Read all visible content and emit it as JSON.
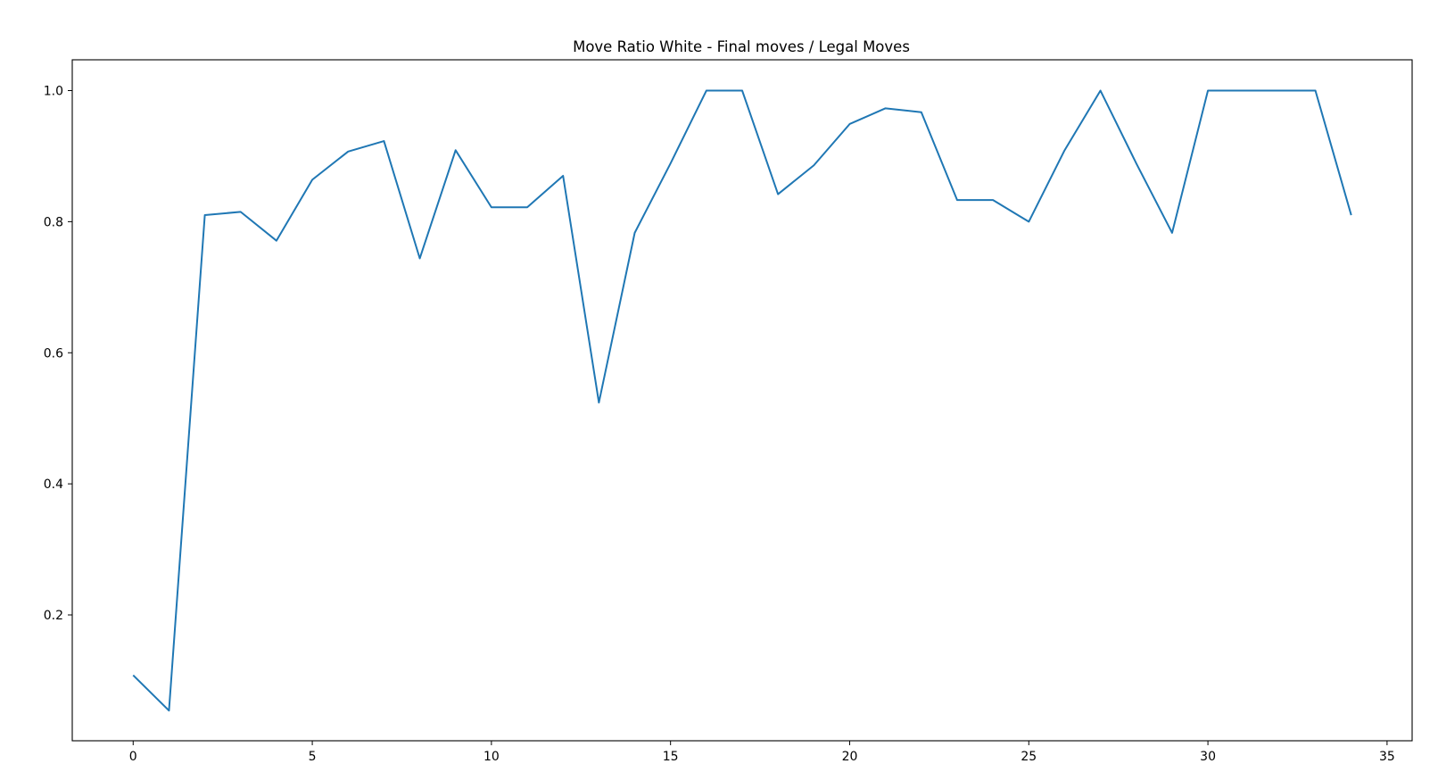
{
  "chart_data": {
    "type": "line",
    "title": "Move Ratio White - Final moves / Legal Moves",
    "xlabel": "",
    "ylabel": "",
    "xlim": [
      -1.7,
      35.7
    ],
    "ylim": [
      0.008,
      1.047
    ],
    "xticks": [
      0,
      5,
      10,
      15,
      20,
      25,
      30,
      35
    ],
    "xtick_labels": [
      "0",
      "5",
      "10",
      "15",
      "20",
      "25",
      "30",
      "35"
    ],
    "yticks": [
      0.2,
      0.4,
      0.6,
      0.8,
      1.0
    ],
    "ytick_labels": [
      "0.2",
      "0.4",
      "0.6",
      "0.8",
      "1.0"
    ],
    "grid": false,
    "legend": "none",
    "series": [
      {
        "color": "#1f77b4",
        "x": [
          0,
          1,
          2,
          3,
          4,
          5,
          6,
          7,
          8,
          9,
          10,
          11,
          12,
          13,
          14,
          15,
          16,
          17,
          18,
          19,
          20,
          21,
          22,
          23,
          24,
          25,
          26,
          27,
          28,
          29,
          30,
          31,
          32,
          33,
          34
        ],
        "values": [
          0.108,
          0.054,
          0.81,
          0.815,
          0.771,
          0.864,
          0.907,
          0.923,
          0.744,
          0.909,
          0.822,
          0.822,
          0.87,
          0.524,
          0.783,
          0.889,
          1.0,
          1.0,
          0.842,
          0.886,
          0.949,
          0.973,
          0.967,
          0.833,
          0.833,
          0.8,
          0.909,
          1.0,
          0.889,
          0.783,
          1.0,
          1.0,
          1.0,
          1.0,
          0.81
        ]
      }
    ]
  }
}
